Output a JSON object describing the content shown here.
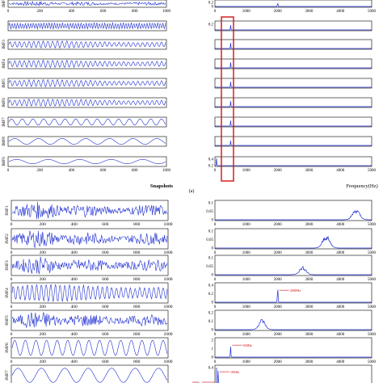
{
  "figure": {
    "top_xlabel_left": "Snapshots",
    "top_xlabel_right": "Frequency(Hz)",
    "caption_a": "(a)"
  },
  "colors": {
    "signal": "#1f2fd0",
    "highlight_box": "#d42020",
    "annotation": "#cc1010",
    "axis": "#000000"
  },
  "chart_data": [
    {
      "type": "line",
      "panel": "a-time",
      "x_range": [
        0,
        1000
      ],
      "xticks": [
        "0",
        "200",
        "400",
        "600",
        "800",
        "1000"
      ],
      "xlabel": "Snapshots",
      "rows": [
        {
          "name": "IMF",
          "pattern": "bursty"
        },
        {
          "name": "",
          "pattern": "fine"
        },
        {
          "name": "IMF3",
          "pattern": "dense"
        },
        {
          "name": "IMF4",
          "pattern": "dense"
        },
        {
          "name": "IMF5",
          "pattern": "dense"
        },
        {
          "name": "IMF6",
          "pattern": "dense"
        },
        {
          "name": "IMF7",
          "pattern": "medium"
        },
        {
          "name": "IMF8",
          "pattern": "slow"
        },
        {
          "name": "IMF9",
          "pattern": "veryslow"
        }
      ]
    },
    {
      "type": "line",
      "panel": "a-spectrum",
      "x_range": [
        0,
        5000
      ],
      "xticks": [
        "0",
        "1000",
        "2000",
        "3000",
        "4000",
        "5000"
      ],
      "xlabel": "Frequency(Hz)",
      "rows": [
        {
          "yticks": [
            "0.2",
            "0"
          ],
          "peak_hz": 2000,
          "peak": 0.8
        },
        {
          "yticks": [
            "0.2"
          ],
          "peak_hz": 500,
          "peak": 0.6
        },
        {
          "yticks": [],
          "peak_hz": 500,
          "peak": 0.7
        },
        {
          "yticks": [],
          "peak_hz": 500,
          "peak": 0.7
        },
        {
          "yticks": [],
          "peak_hz": 500,
          "peak": 0.7
        },
        {
          "yticks": [],
          "peak_hz": 500,
          "peak": 0.7
        },
        {
          "yticks": [],
          "peak_hz": 500,
          "peak": 0.7
        },
        {
          "yticks": [],
          "peak_hz": 500,
          "peak": 0.6
        },
        {
          "yticks": [
            "0.4",
            "0.2"
          ],
          "peak_hz": 50,
          "peak": 0.9
        }
      ]
    },
    {
      "type": "line",
      "panel": "b-time",
      "x_range": [
        0,
        1000
      ],
      "xticks": [
        "0",
        "200",
        "400",
        "600",
        "800",
        "1000"
      ],
      "rows": [
        {
          "name": "IMF1",
          "pattern": "bursty"
        },
        {
          "name": "IMF2",
          "pattern": "bursty"
        },
        {
          "name": "IMF3",
          "pattern": "bursty"
        },
        {
          "name": "IMF4",
          "pattern": "dense"
        },
        {
          "name": "IMF5",
          "pattern": "bursty"
        },
        {
          "name": "IMF6",
          "pattern": "medium"
        },
        {
          "name": "IMF7",
          "pattern": "slow"
        }
      ]
    },
    {
      "type": "line",
      "panel": "b-spectrum",
      "x_range": [
        0,
        5000
      ],
      "xticks": [
        "0",
        "1000",
        "2000",
        "3000",
        "4000",
        "5000"
      ],
      "rows": [
        {
          "ymax": "0.1",
          "ymin": "0",
          "yticks": [
            "0.1",
            "0.05",
            "0"
          ],
          "center_hz": 4500,
          "peak": 0.6,
          "spread": 160
        },
        {
          "ymax": "0.1",
          "ymin": "0",
          "yticks": [
            "0.1",
            "0.05",
            "0"
          ],
          "center_hz": 3550,
          "peak": 0.7,
          "spread": 160
        },
        {
          "ymax": "0.1",
          "ymin": "0",
          "yticks": [
            "0.1",
            "0.05",
            "0"
          ],
          "center_hz": 2800,
          "peak": 0.45,
          "spread": 150
        },
        {
          "ymax": "0.4",
          "ymin": "0",
          "yticks": [
            "0.4",
            "0.2",
            "0"
          ],
          "center_hz": 2000,
          "peak": 0.85,
          "spread": 14,
          "annotation": "2000Hz"
        },
        {
          "ymax": "0.2",
          "ymin": "0",
          "yticks": [
            "0.2",
            "0.1",
            "0"
          ],
          "center_hz": 1500,
          "peak": 0.6,
          "spread": 140
        },
        {
          "ymax": "2",
          "ymin": "0",
          "yticks": [
            "2",
            "1",
            "0"
          ],
          "center_hz": 500,
          "peak": 0.85,
          "spread": 12,
          "annotation": "500Hz"
        },
        {
          "ymax": "0.4",
          "ymin": "",
          "yticks": [
            "0.4",
            "0.2"
          ],
          "center_hz": 100,
          "peak": 0.9,
          "spread": 12,
          "annotation": "100Hz",
          "annotation2": "50Hz"
        }
      ]
    }
  ]
}
